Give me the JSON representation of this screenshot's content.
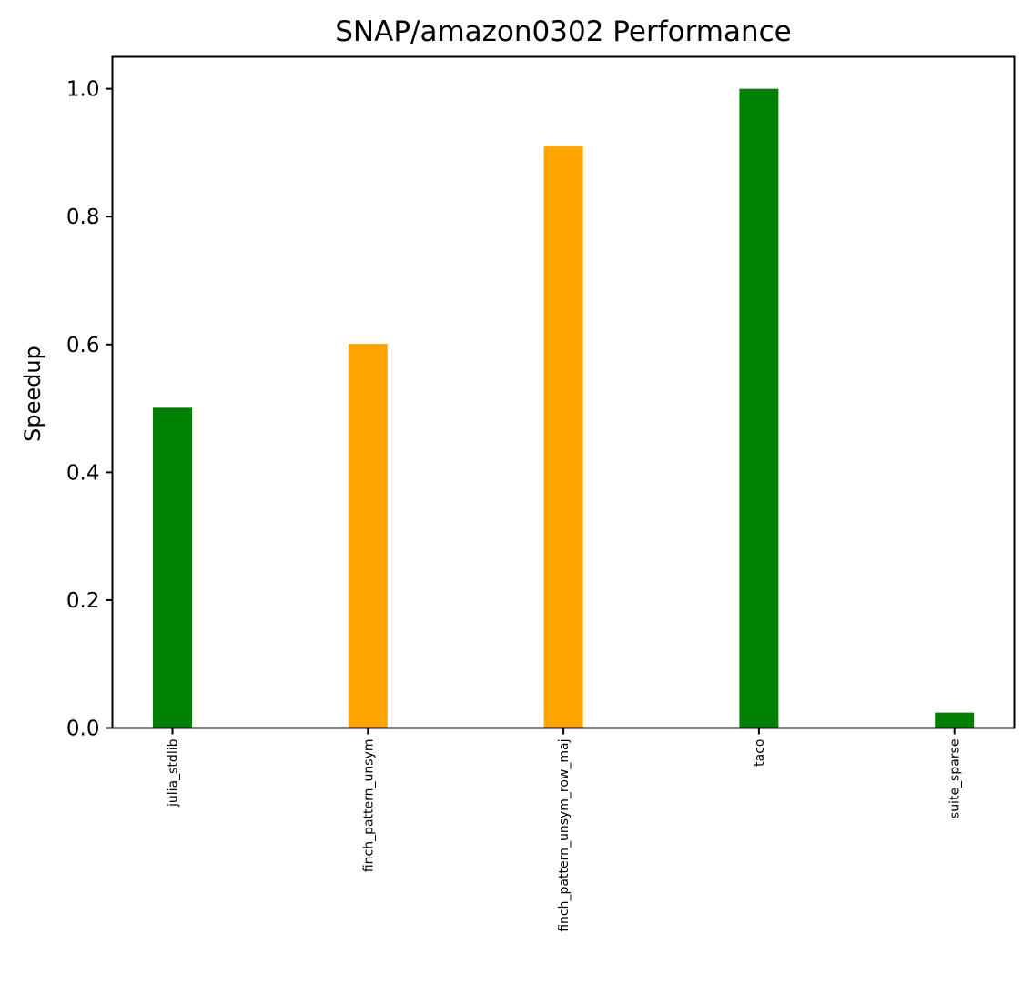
{
  "chart_data": {
    "type": "bar",
    "title": "SNAP/amazon0302 Performance",
    "xlabel": "",
    "ylabel": "Speedup",
    "categories": [
      "julia_stdlib",
      "finch_pattern_unsym",
      "finch_pattern_unsym_row_maj",
      "taco",
      "suite_sparse"
    ],
    "values": [
      0.501,
      0.601,
      0.911,
      1.0,
      0.024
    ],
    "bar_colors": [
      "#008000",
      "#ffa500",
      "#ffa500",
      "#008000",
      "#008000"
    ],
    "ylim": [
      0,
      1.05
    ],
    "yticks": [
      0.0,
      0.2,
      0.4,
      0.6,
      0.8,
      1.0
    ],
    "ytick_labels": [
      "0.0",
      "0.2",
      "0.4",
      "0.6",
      "0.8",
      "1.0"
    ],
    "grid": false,
    "legend": null
  }
}
